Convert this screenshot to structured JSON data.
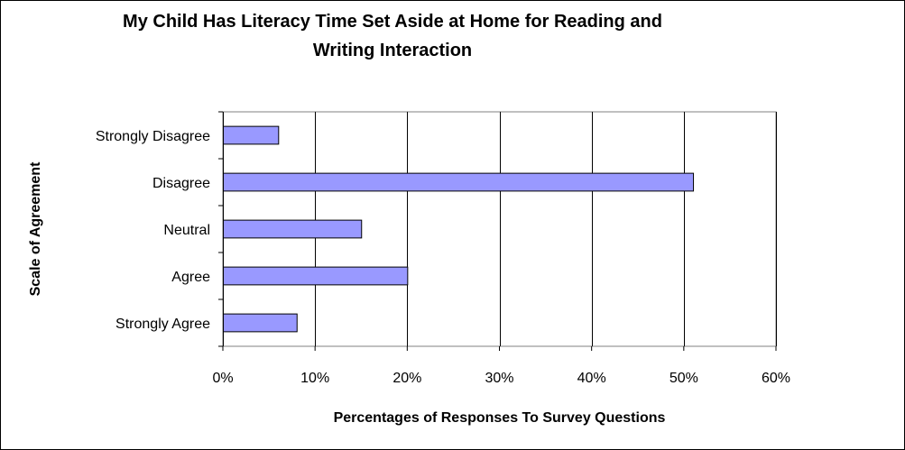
{
  "chart_data": {
    "type": "bar",
    "orientation": "horizontal",
    "title": "My Child Has Literacy Time Set Aside at Home for Reading and Writing Interaction",
    "xlabel": "Percentages of Responses To Survey Questions",
    "ylabel": "Scale of Agreement",
    "categories": [
      "Strongly Disagree",
      "Disagree",
      "Neutral",
      "Agree",
      "Strongly Agree"
    ],
    "values": [
      6,
      51,
      15,
      20,
      8
    ],
    "xlim": [
      0,
      60
    ],
    "xticks": [
      0,
      10,
      20,
      30,
      40,
      50,
      60
    ],
    "xtick_labels": [
      "0%",
      "10%",
      "20%",
      "30%",
      "40%",
      "50%",
      "60%"
    ],
    "grid": "vertical",
    "legend": "none",
    "bar_color": "#9999ff",
    "bar_edge_color": "#000000"
  }
}
